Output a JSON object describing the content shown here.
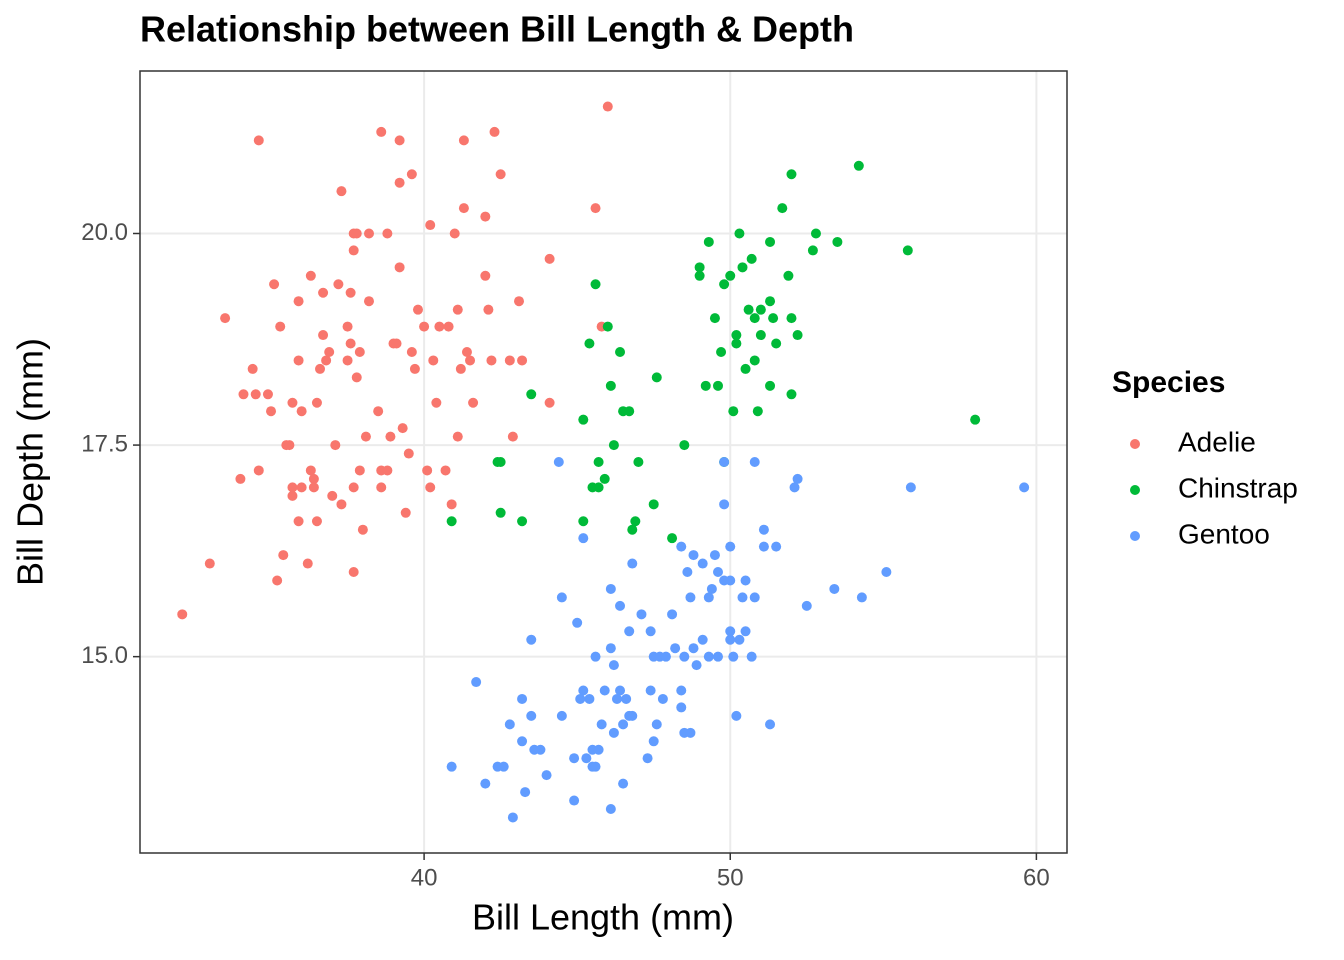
{
  "chart_data": {
    "type": "scatter",
    "title": "Relationship between Bill Length & Depth",
    "x_label": "Bill Length (mm)",
    "y_label": "Bill Depth (mm)",
    "legend_title": "Species",
    "legend_position": "right",
    "grid": true,
    "xlim": [
      30.72,
      61.0
    ],
    "ylim": [
      12.68,
      21.92
    ],
    "xticks": [
      40,
      50,
      60
    ],
    "yticks": [
      {
        "value": 15,
        "label": "15.0"
      },
      17.5,
      {
        "value": 20,
        "label": "20.0"
      }
    ],
    "series": [
      {
        "name": "Adelie",
        "color": "#F8766D",
        "x": [
          32.1,
          33.0,
          33.5,
          34.0,
          34.1,
          34.4,
          34.5,
          34.6,
          34.6,
          34.9,
          35.0,
          35.1,
          35.2,
          35.3,
          35.4,
          35.5,
          35.6,
          35.7,
          35.7,
          35.7,
          35.9,
          35.9,
          35.9,
          36.0,
          36.0,
          36.2,
          36.3,
          36.3,
          36.4,
          36.4,
          36.5,
          36.5,
          36.6,
          36.7,
          36.7,
          36.8,
          36.9,
          37.0,
          37.1,
          37.2,
          37.3,
          37.3,
          37.5,
          37.5,
          37.6,
          37.6,
          37.7,
          37.7,
          37.7,
          37.7,
          37.8,
          37.8,
          37.9,
          37.9,
          38.0,
          38.1,
          38.2,
          38.2,
          38.5,
          38.6,
          38.6,
          38.6,
          38.8,
          38.8,
          38.9,
          39.0,
          39.1,
          39.2,
          39.2,
          39.2,
          39.3,
          39.4,
          39.5,
          39.6,
          39.6,
          39.7,
          39.8,
          40.0,
          40.1,
          40.2,
          40.2,
          40.3,
          40.4,
          40.5,
          40.7,
          40.8,
          40.9,
          41.0,
          41.1,
          41.1,
          41.2,
          41.3,
          41.3,
          41.4,
          41.5,
          41.6,
          42.0,
          42.0,
          42.1,
          42.2,
          42.3,
          42.5,
          42.8,
          42.9,
          43.1,
          43.2,
          44.1,
          44.1,
          45.6,
          45.8,
          46.0
        ],
        "y": [
          15.5,
          16.1,
          19.0,
          17.1,
          18.1,
          18.4,
          18.1,
          21.1,
          17.2,
          18.1,
          17.9,
          19.4,
          15.9,
          18.9,
          16.2,
          17.5,
          17.5,
          18.0,
          17.0,
          16.9,
          19.2,
          16.6,
          18.5,
          17.9,
          17.0,
          16.1,
          19.5,
          17.2,
          17.1,
          17.0,
          18.0,
          16.6,
          18.4,
          19.3,
          18.8,
          18.5,
          18.6,
          16.9,
          17.5,
          19.4,
          20.5,
          16.8,
          18.9,
          18.5,
          18.7,
          19.3,
          16.0,
          19.8,
          17.0,
          20.0,
          20.0,
          18.3,
          18.6,
          17.2,
          16.5,
          17.6,
          20.0,
          19.2,
          17.9,
          21.2,
          17.0,
          17.2,
          17.2,
          20.0,
          17.6,
          18.7,
          18.7,
          21.1,
          19.6,
          20.6,
          17.7,
          16.7,
          17.4,
          20.7,
          18.6,
          18.4,
          19.1,
          18.9,
          17.2,
          17.0,
          20.1,
          18.5,
          18.0,
          18.9,
          17.2,
          18.9,
          16.8,
          20.0,
          17.6,
          19.1,
          18.4,
          21.1,
          20.3,
          18.6,
          18.5,
          18.0,
          20.2,
          19.5,
          19.1,
          18.5,
          21.2,
          20.7,
          18.5,
          17.6,
          19.2,
          18.5,
          19.7,
          18.0,
          20.3,
          18.9,
          21.5
        ]
      },
      {
        "name": "Chinstrap",
        "color": "#00BA38",
        "x": [
          40.9,
          42.4,
          42.5,
          42.5,
          43.2,
          43.5,
          45.2,
          45.2,
          45.4,
          45.5,
          45.6,
          45.7,
          45.7,
          45.9,
          46.0,
          46.1,
          46.2,
          46.4,
          46.5,
          46.7,
          46.8,
          46.9,
          47.0,
          47.5,
          47.6,
          48.1,
          48.5,
          49.0,
          49.0,
          49.2,
          49.3,
          49.5,
          49.6,
          49.7,
          49.8,
          49.8,
          50.1,
          50.0,
          50.2,
          50.2,
          50.3,
          50.4,
          50.5,
          50.6,
          50.7,
          50.8,
          50.8,
          50.9,
          51.0,
          51.0,
          51.3,
          51.3,
          51.3,
          51.4,
          51.5,
          51.7,
          51.9,
          52.0,
          52.0,
          52.0,
          52.2,
          52.7,
          52.8,
          53.5,
          54.2,
          55.8,
          58.0
        ],
        "y": [
          16.6,
          17.3,
          17.3,
          16.7,
          16.6,
          18.1,
          16.6,
          17.8,
          18.7,
          17.0,
          19.4,
          17.3,
          17.0,
          17.1,
          18.9,
          18.2,
          17.5,
          18.6,
          17.9,
          17.9,
          16.5,
          16.6,
          17.3,
          16.8,
          18.3,
          16.4,
          17.5,
          19.6,
          19.5,
          18.2,
          19.9,
          19.0,
          18.2,
          18.6,
          19.4,
          17.3,
          17.9,
          19.5,
          18.7,
          18.8,
          20.0,
          19.6,
          18.4,
          19.1,
          19.7,
          19.0,
          18.5,
          17.9,
          19.1,
          18.8,
          19.2,
          19.9,
          18.2,
          19.0,
          18.7,
          20.3,
          19.5,
          18.1,
          19.0,
          20.7,
          18.8,
          19.8,
          20.0,
          19.9,
          20.8,
          19.8,
          17.8
        ]
      },
      {
        "name": "Gentoo",
        "color": "#619CFF",
        "x": [
          40.9,
          41.7,
          42.0,
          42.4,
          42.6,
          42.8,
          42.9,
          43.2,
          43.2,
          43.3,
          43.5,
          43.5,
          43.6,
          43.8,
          44.0,
          44.4,
          44.5,
          44.5,
          44.9,
          44.9,
          45.0,
          45.1,
          45.2,
          45.2,
          45.3,
          45.4,
          45.5,
          45.5,
          45.6,
          45.6,
          45.7,
          45.8,
          45.9,
          46.1,
          46.1,
          46.1,
          46.2,
          46.2,
          46.3,
          46.4,
          46.4,
          46.5,
          46.5,
          46.6,
          46.7,
          46.7,
          46.8,
          46.8,
          47.1,
          47.3,
          47.4,
          47.4,
          47.5,
          47.5,
          47.6,
          47.7,
          47.8,
          47.9,
          48.1,
          48.2,
          48.4,
          48.4,
          48.4,
          48.5,
          48.5,
          48.6,
          48.7,
          48.7,
          48.8,
          48.8,
          48.9,
          49.1,
          49.1,
          49.3,
          49.3,
          49.4,
          49.5,
          49.6,
          49.6,
          49.8,
          49.8,
          49.8,
          50.0,
          50.0,
          50.0,
          50.0,
          50.1,
          50.2,
          50.3,
          50.4,
          50.5,
          50.5,
          50.7,
          50.8,
          50.8,
          51.1,
          51.1,
          51.3,
          51.5,
          52.1,
          52.2,
          52.5,
          53.4,
          54.3,
          55.1,
          55.9,
          59.6
        ],
        "y": [
          13.7,
          14.7,
          13.5,
          13.7,
          13.7,
          14.2,
          13.1,
          14.0,
          14.5,
          13.4,
          14.3,
          15.2,
          13.9,
          13.9,
          13.6,
          17.3,
          14.3,
          15.7,
          13.3,
          13.8,
          15.4,
          14.5,
          16.4,
          14.6,
          13.8,
          14.5,
          13.7,
          13.9,
          13.7,
          15.0,
          13.9,
          14.2,
          14.6,
          15.1,
          13.2,
          15.8,
          14.1,
          14.9,
          14.5,
          14.6,
          15.6,
          13.5,
          14.2,
          14.5,
          14.3,
          15.3,
          16.1,
          14.3,
          15.5,
          13.8,
          15.3,
          14.6,
          14.0,
          15.0,
          14.2,
          15.0,
          14.5,
          15.0,
          15.5,
          15.1,
          16.3,
          14.6,
          14.4,
          14.1,
          15.0,
          16.0,
          14.1,
          15.7,
          15.1,
          16.2,
          14.9,
          16.1,
          15.2,
          15.7,
          15.0,
          15.8,
          16.2,
          16.0,
          15.0,
          15.9,
          17.3,
          16.8,
          16.3,
          15.3,
          15.9,
          15.2,
          15.0,
          14.3,
          15.2,
          15.7,
          15.9,
          15.3,
          15.0,
          15.7,
          17.3,
          16.5,
          16.3,
          14.2,
          16.3,
          17.0,
          17.1,
          15.6,
          15.8,
          15.7,
          16.0,
          17.0,
          17.0
        ]
      }
    ]
  }
}
